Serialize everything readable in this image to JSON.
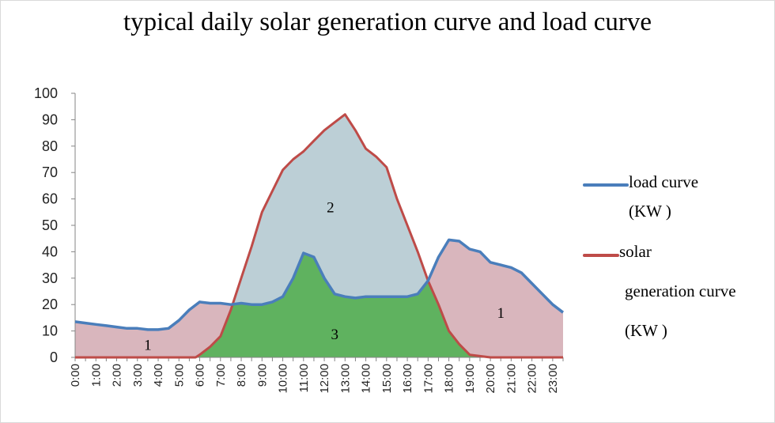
{
  "chart_data": {
    "type": "area",
    "title": "typical daily solar generation curve and load curve",
    "xlabel": "",
    "ylabel": "",
    "ylim": [
      0,
      100
    ],
    "yticks": [
      0,
      10,
      20,
      30,
      40,
      50,
      60,
      70,
      80,
      90,
      100
    ],
    "xlim": [
      0,
      23.5
    ],
    "tick_labels": [
      "0:00",
      "1:00",
      "2:00",
      "3:00",
      "4:00",
      "5:00",
      "6:00",
      "7:00",
      "8:00",
      "9:00",
      "10:00",
      "11:00",
      "12:00",
      "13:00",
      "14:00",
      "15:00",
      "16:00",
      "17:00",
      "18:00",
      "19:00",
      "20:00",
      "21:00",
      "22:00",
      "23:00"
    ],
    "series": [
      {
        "name": "load curve (KW )",
        "color": "#4a7ebb",
        "x": [
          0,
          0.5,
          1,
          1.5,
          2,
          2.5,
          3,
          3.5,
          4,
          4.5,
          5,
          5.5,
          6,
          6.5,
          7,
          7.5,
          8,
          8.5,
          9,
          9.5,
          10,
          10.5,
          11,
          11.5,
          12,
          12.5,
          13,
          13.5,
          14,
          14.5,
          15,
          15.5,
          16,
          16.5,
          17,
          17.5,
          18,
          18.5,
          19,
          19.5,
          20,
          20.5,
          21,
          21.5,
          22,
          22.5,
          23,
          23.5
        ],
        "values": [
          13.5,
          13,
          12.5,
          12,
          11.5,
          11,
          11,
          10.5,
          10.5,
          11,
          14,
          18,
          21,
          20.5,
          20.5,
          20,
          20.5,
          20,
          20,
          21,
          23,
          30,
          39.5,
          38,
          30,
          24,
          23,
          22.5,
          23,
          23,
          23,
          23,
          23,
          24,
          29,
          38,
          44.5,
          44,
          41,
          40,
          36,
          35,
          34,
          32,
          28,
          24,
          20,
          17
        ]
      },
      {
        "name": "solar generation curve (KW )",
        "color": "#be4b48",
        "x": [
          0,
          1,
          2,
          3,
          4,
          5,
          5.8,
          6,
          6.5,
          7,
          7.5,
          8,
          8.5,
          9,
          9.5,
          10,
          10.5,
          11,
          11.5,
          12,
          12.5,
          13,
          13.5,
          14,
          14.5,
          15,
          15.5,
          16,
          16.5,
          17,
          17.5,
          18,
          18.5,
          19,
          20,
          21,
          22,
          23,
          23.5
        ],
        "values": [
          0,
          0,
          0,
          0,
          0,
          0,
          0,
          1,
          4,
          8,
          18,
          30,
          42,
          55,
          63,
          71,
          75,
          78,
          82,
          86,
          89,
          92,
          86,
          79,
          76,
          72,
          60,
          50,
          40,
          29,
          20,
          10,
          5,
          1,
          0,
          0,
          0,
          0,
          0
        ]
      }
    ],
    "region_labels": [
      {
        "text": "1",
        "x": 3.5,
        "y": 5
      },
      {
        "text": "2",
        "x": 12.3,
        "y": 57
      },
      {
        "text": "3",
        "x": 12.5,
        "y": 9
      },
      {
        "text": "1",
        "x": 20.5,
        "y": 17
      }
    ],
    "legend": [
      {
        "line1": "load curve",
        "line2": "(KW )"
      },
      {
        "line1": "solar",
        "line2": "generation curve",
        "line3": "(KW )"
      }
    ],
    "fill_colors": {
      "load_excess": "#d9b6bd",
      "solar_excess": "#bccfd6",
      "self_consumed": "#5fb25f"
    }
  }
}
